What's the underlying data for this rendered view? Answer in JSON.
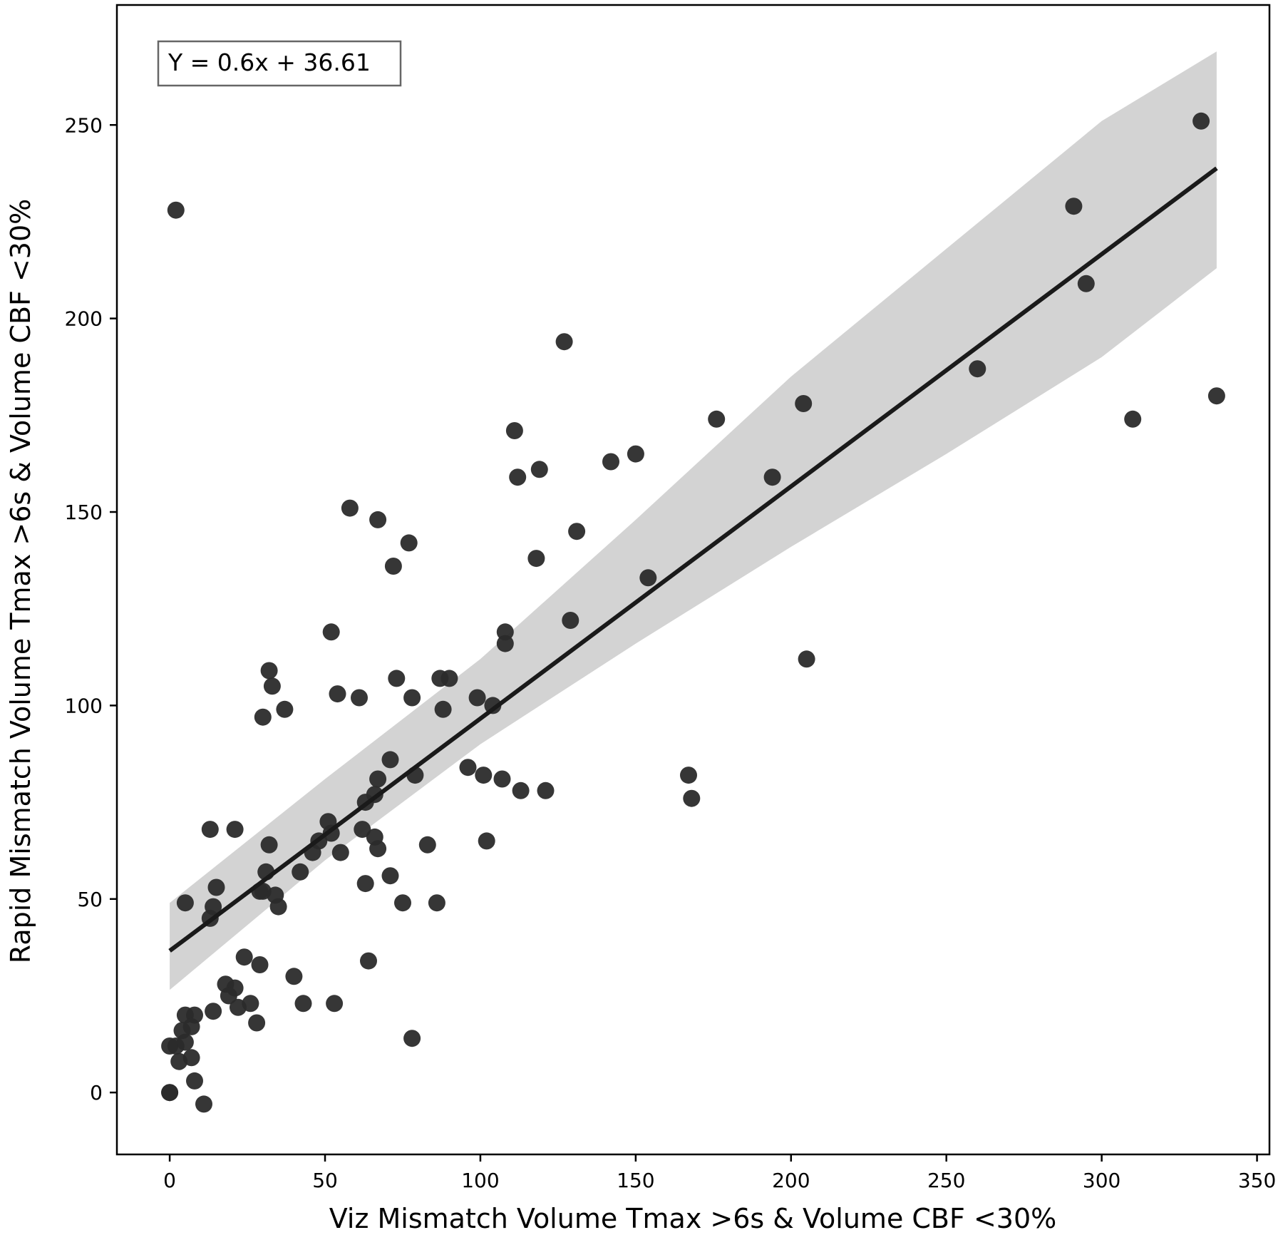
{
  "chart_data": {
    "type": "scatter",
    "xlabel": "Viz Mismatch Volume Tmax >6s & Volume CBF <30%",
    "ylabel": "Rapid Mismatch Volume Tmax >6s & Volume CBF <30%",
    "xlim": [
      -17,
      354
    ],
    "ylim": [
      -16,
      281
    ],
    "xticks": [
      0,
      50,
      100,
      150,
      200,
      250,
      300,
      350
    ],
    "yticks": [
      0,
      50,
      100,
      150,
      200,
      250
    ],
    "annotation": "Y = 0.6x + 36.61",
    "legend_position": "top-left",
    "grid": false,
    "colors": {
      "points": "#2b2b2b",
      "line": "#1a1a1a",
      "band": "#d3d3d3"
    },
    "regression": {
      "slope": 0.6,
      "intercept": 36.61,
      "x_range": [
        0,
        337
      ]
    },
    "confidence_band": {
      "x": [
        0,
        50,
        100,
        150,
        200,
        250,
        300,
        337
      ],
      "lower": [
        26.5,
        60,
        90,
        116,
        141,
        165,
        190,
        213
      ],
      "upper": [
        49,
        81,
        112,
        148,
        185,
        218,
        251,
        269
      ]
    },
    "points": [
      [
        2,
        228
      ],
      [
        332,
        251
      ],
      [
        291,
        229
      ],
      [
        295,
        209
      ],
      [
        337,
        180
      ],
      [
        310,
        174
      ],
      [
        260,
        187
      ],
      [
        204,
        178
      ],
      [
        194,
        159
      ],
      [
        176,
        174
      ],
      [
        205,
        112
      ],
      [
        167,
        82
      ],
      [
        168,
        76
      ],
      [
        154,
        133
      ],
      [
        150,
        165
      ],
      [
        142,
        163
      ],
      [
        127,
        194
      ],
      [
        131,
        145
      ],
      [
        129,
        122
      ],
      [
        111,
        171
      ],
      [
        112,
        159
      ],
      [
        119,
        161
      ],
      [
        118,
        138
      ],
      [
        108,
        119
      ],
      [
        108,
        116
      ],
      [
        104,
        100
      ],
      [
        99,
        102
      ],
      [
        101,
        82
      ],
      [
        107,
        81
      ],
      [
        113,
        78
      ],
      [
        121,
        78
      ],
      [
        102,
        65
      ],
      [
        96,
        84
      ],
      [
        90,
        107
      ],
      [
        87,
        107
      ],
      [
        88,
        99
      ],
      [
        58,
        151
      ],
      [
        67,
        148
      ],
      [
        77,
        142
      ],
      [
        72,
        136
      ],
      [
        52,
        119
      ],
      [
        73,
        107
      ],
      [
        78,
        102
      ],
      [
        61,
        102
      ],
      [
        54,
        103
      ],
      [
        32,
        109
      ],
      [
        33,
        105
      ],
      [
        37,
        99
      ],
      [
        30,
        97
      ],
      [
        71,
        86
      ],
      [
        79,
        82
      ],
      [
        67,
        81
      ],
      [
        66,
        77
      ],
      [
        63,
        75
      ],
      [
        51,
        70
      ],
      [
        52,
        67
      ],
      [
        62,
        68
      ],
      [
        66,
        66
      ],
      [
        48,
        65
      ],
      [
        67,
        63
      ],
      [
        46,
        62
      ],
      [
        55,
        62
      ],
      [
        83,
        64
      ],
      [
        32,
        64
      ],
      [
        31,
        57
      ],
      [
        42,
        57
      ],
      [
        71,
        56
      ],
      [
        63,
        54
      ],
      [
        29,
        52
      ],
      [
        30,
        52
      ],
      [
        34,
        51
      ],
      [
        35,
        48
      ],
      [
        75,
        49
      ],
      [
        86,
        49
      ],
      [
        5,
        49
      ],
      [
        15,
        53
      ],
      [
        14,
        48
      ],
      [
        13,
        45
      ],
      [
        13,
        68
      ],
      [
        21,
        68
      ],
      [
        24,
        35
      ],
      [
        29,
        33
      ],
      [
        64,
        34
      ],
      [
        40,
        30
      ],
      [
        18,
        28
      ],
      [
        21,
        27
      ],
      [
        19,
        25
      ],
      [
        22,
        22
      ],
      [
        26,
        23
      ],
      [
        43,
        23
      ],
      [
        53,
        23
      ],
      [
        14,
        21
      ],
      [
        28,
        18
      ],
      [
        5,
        20
      ],
      [
        8,
        20
      ],
      [
        4,
        16
      ],
      [
        7,
        17
      ],
      [
        78,
        14
      ],
      [
        0,
        12
      ],
      [
        2,
        12
      ],
      [
        5,
        13
      ],
      [
        3,
        8
      ],
      [
        7,
        9
      ],
      [
        8,
        3
      ],
      [
        0,
        0
      ],
      [
        0,
        0
      ],
      [
        11,
        -3
      ]
    ]
  }
}
